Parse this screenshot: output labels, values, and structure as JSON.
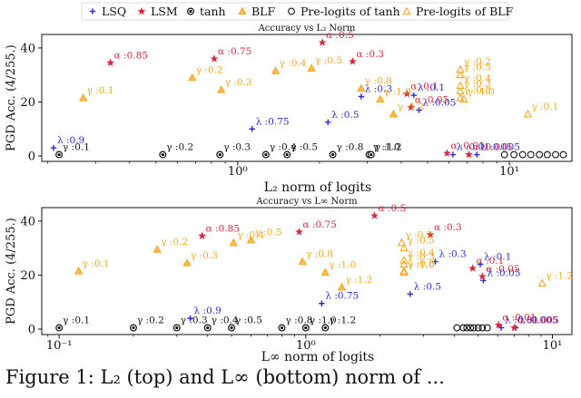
{
  "legend": {
    "entries": [
      {
        "label": "LSQ",
        "marker": "plus",
        "color": "#2b2bd8"
      },
      {
        "label": "LSM",
        "marker": "star",
        "color": "#d7263d"
      },
      {
        "label": "tanh",
        "marker": "circle-dot",
        "color": "#111111"
      },
      {
        "label": "BLF",
        "marker": "triangle",
        "color": "#f4a81d"
      },
      {
        "label": "Pre-logits of tanh",
        "marker": "circle-open",
        "color": "#111111"
      },
      {
        "label": "Pre-logits of BLF",
        "marker": "triangle-open",
        "color": "#f4a81d"
      }
    ]
  },
  "caption": "Figure 1: L₂ (top) and L∞ (bottom) norm of ...",
  "colors": {
    "LSQ": "#2b2bd8",
    "LSM": "#d7263d",
    "tanh": "#111111",
    "BLF": "#f4a81d",
    "pre_tanh": "#111111",
    "pre_BLF": "#f4a81d"
  },
  "chart_data": [
    {
      "type": "scatter",
      "title": "Accuracy vs L₂ Norm",
      "xlabel": "L₂ norm of logits",
      "ylabel": "PGD Acc. (4/255.)",
      "xscale": "log",
      "xlim": [
        0.19,
        17
      ],
      "ylim": [
        -2,
        45
      ],
      "yticks": [
        0,
        20,
        40
      ],
      "xticks": [
        {
          "v": 1,
          "label": "10⁰"
        },
        {
          "v": 10,
          "label": "10¹"
        }
      ],
      "series": [
        {
          "name": "LSQ",
          "points": [
            {
              "x": 0.21,
              "y": 3,
              "label": "λ :0.9"
            },
            {
              "x": 1.13,
              "y": 10,
              "label": "λ :0.75"
            },
            {
              "x": 2.15,
              "y": 12.5,
              "label": "λ :0.5"
            },
            {
              "x": 2.85,
              "y": 22,
              "label": "λ :0.3"
            },
            {
              "x": 4.45,
              "y": 22.5,
              "label": "λ :0.1"
            },
            {
              "x": 4.65,
              "y": 17,
              "label": "λ :0.05"
            },
            {
              "x": 6.2,
              "y": 0.5,
              "label": "λ :0.01"
            },
            {
              "x": 7.6,
              "y": 0.5,
              "label": "λ :0.005"
            }
          ]
        },
        {
          "name": "LSM",
          "points": [
            {
              "x": 0.34,
              "y": 34.5,
              "label": "α :0.85"
            },
            {
              "x": 0.82,
              "y": 36,
              "label": "α :0.75"
            },
            {
              "x": 2.05,
              "y": 42,
              "label": "α :0.5"
            },
            {
              "x": 2.65,
              "y": 35,
              "label": "α :0.3"
            },
            {
              "x": 4.2,
              "y": 23,
              "label": "α :0.1"
            },
            {
              "x": 4.35,
              "y": 18,
              "label": "α :0.05"
            },
            {
              "x": 5.9,
              "y": 1,
              "label": "α :0.01"
            },
            {
              "x": 7.1,
              "y": 0.5,
              "label": "α :0.005"
            }
          ]
        },
        {
          "name": "tanh",
          "points": [
            {
              "x": 0.22,
              "y": 0.5,
              "label": "γ :0.1"
            },
            {
              "x": 0.53,
              "y": 0.5,
              "label": "γ :0.2"
            },
            {
              "x": 0.86,
              "y": 0.5,
              "label": "γ :0.3"
            },
            {
              "x": 1.27,
              "y": 0.5,
              "label": "γ :0.4"
            },
            {
              "x": 1.52,
              "y": 0.5,
              "label": "γ :0.5"
            },
            {
              "x": 2.24,
              "y": 0.5,
              "label": "γ :0.8"
            },
            {
              "x": 3.05,
              "y": 0.5,
              "label": "γ :1.0"
            },
            {
              "x": 3.1,
              "y": 0.5,
              "label": "γ :1.2"
            }
          ]
        },
        {
          "name": "BLF",
          "points": [
            {
              "x": 0.27,
              "y": 21.5,
              "label": "γ :0.1"
            },
            {
              "x": 0.68,
              "y": 29,
              "label": "γ :0.2"
            },
            {
              "x": 0.87,
              "y": 24.5,
              "label": "γ :0.3"
            },
            {
              "x": 1.38,
              "y": 31.5,
              "label": "γ :0.4"
            },
            {
              "x": 1.87,
              "y": 32.5,
              "label": "γ :0.5"
            },
            {
              "x": 2.85,
              "y": 25,
              "label": "γ :0.8"
            },
            {
              "x": 3.35,
              "y": 21,
              "label": "γ :1.0"
            },
            {
              "x": 3.75,
              "y": 15.5,
              "label": "γ :1.2"
            }
          ]
        },
        {
          "name": "Pre-logits of tanh",
          "points": [
            {
              "x": 9.6,
              "y": 0.5
            },
            {
              "x": 10.4,
              "y": 0.5
            },
            {
              "x": 11.2,
              "y": 0.5
            },
            {
              "x": 12.0,
              "y": 0.5
            },
            {
              "x": 12.9,
              "y": 0.5
            },
            {
              "x": 13.8,
              "y": 0.5
            },
            {
              "x": 14.8,
              "y": 0.5
            },
            {
              "x": 15.8,
              "y": 0.5
            }
          ]
        },
        {
          "name": "Pre-logits of BLF",
          "points": [
            {
              "x": 6.6,
              "y": 32,
              "label": "γ :0.2"
            },
            {
              "x": 6.6,
              "y": 30,
              "label": "γ :0.5"
            },
            {
              "x": 6.6,
              "y": 26,
              "label": "γ :0.4"
            },
            {
              "x": 6.6,
              "y": 24,
              "label": "γ :0.3"
            },
            {
              "x": 6.6,
              "y": 21.5,
              "label": "γ :0.8"
            },
            {
              "x": 6.8,
              "y": 21,
              "label": "γ :1.0"
            },
            {
              "x": 11.7,
              "y": 15.5,
              "label": "γ :0.1"
            }
          ]
        }
      ]
    },
    {
      "type": "scatter",
      "title": "Accuracy vs L∞ Norm",
      "xlabel": "L∞ norm of logits",
      "ylabel": "PGD Acc. (4/255.)",
      "xscale": "log",
      "xlim": [
        0.085,
        12
      ],
      "ylim": [
        -2,
        45
      ],
      "yticks": [
        0,
        20,
        40
      ],
      "xticks": [
        {
          "v": 0.1,
          "label": "10⁻¹"
        },
        {
          "v": 1,
          "label": "10⁰"
        },
        {
          "v": 10,
          "label": "10¹"
        }
      ],
      "series": [
        {
          "name": "LSQ",
          "points": [
            {
              "x": 0.34,
              "y": 4,
              "label": "λ :0.9"
            },
            {
              "x": 1.16,
              "y": 9.5,
              "label": "λ :0.75"
            },
            {
              "x": 2.65,
              "y": 13,
              "label": "λ :0.5"
            },
            {
              "x": 3.35,
              "y": 25,
              "label": "λ :0.3"
            },
            {
              "x": 5.1,
              "y": 24,
              "label": "λ :0.1"
            },
            {
              "x": 5.25,
              "y": 18,
              "label": "λ :0.05"
            },
            {
              "x": 6.2,
              "y": 0.5,
              "label": "λ :0.01"
            },
            {
              "x": 7.1,
              "y": 0.5,
              "label": "λ :0.005"
            }
          ]
        },
        {
          "name": "LSM",
          "points": [
            {
              "x": 0.38,
              "y": 34.5,
              "label": "α :0.85"
            },
            {
              "x": 0.94,
              "y": 36,
              "label": "α :0.75"
            },
            {
              "x": 1.9,
              "y": 42,
              "label": "α :0.5"
            },
            {
              "x": 3.2,
              "y": 35,
              "label": "α :0.3"
            },
            {
              "x": 4.75,
              "y": 22.5,
              "label": "α :0.1"
            },
            {
              "x": 5.2,
              "y": 19.5,
              "label": "α :0.05"
            },
            {
              "x": 6.05,
              "y": 1.5,
              "label": "α :0.01"
            },
            {
              "x": 7.0,
              "y": 0.5,
              "label": "α :0.005"
            }
          ]
        },
        {
          "name": "tanh",
          "points": [
            {
              "x": 0.1,
              "y": 0.5,
              "label": "γ :0.1"
            },
            {
              "x": 0.2,
              "y": 0.5,
              "label": "γ :0.2"
            },
            {
              "x": 0.3,
              "y": 0.5,
              "label": "γ :0.3"
            },
            {
              "x": 0.4,
              "y": 0.5,
              "label": "γ :0.4"
            },
            {
              "x": 0.5,
              "y": 0.5,
              "label": "γ :0.5"
            },
            {
              "x": 0.8,
              "y": 0.5,
              "label": "γ :0.8"
            },
            {
              "x": 1.0,
              "y": 0.5,
              "label": "γ :1.0"
            },
            {
              "x": 1.2,
              "y": 0.5,
              "label": "γ :1.2"
            }
          ]
        },
        {
          "name": "BLF",
          "points": [
            {
              "x": 0.12,
              "y": 21.5,
              "label": "γ :0.1"
            },
            {
              "x": 0.25,
              "y": 29.5,
              "label": "γ :0.2"
            },
            {
              "x": 0.33,
              "y": 24.5,
              "label": "γ :0.3"
            },
            {
              "x": 0.51,
              "y": 32,
              "label": "γ :0.4"
            },
            {
              "x": 0.6,
              "y": 33,
              "label": "γ :0.5"
            },
            {
              "x": 0.97,
              "y": 25,
              "label": "γ :0.8"
            },
            {
              "x": 1.2,
              "y": 21,
              "label": "γ :1.0"
            },
            {
              "x": 1.4,
              "y": 15.5,
              "label": "γ :1.2"
            }
          ]
        },
        {
          "name": "Pre-logits of tanh",
          "points": [
            {
              "x": 4.1,
              "y": 0.5
            },
            {
              "x": 4.35,
              "y": 0.5
            },
            {
              "x": 4.5,
              "y": 0.5
            },
            {
              "x": 4.65,
              "y": 0.5
            },
            {
              "x": 4.8,
              "y": 0.5
            },
            {
              "x": 5.0,
              "y": 0.5
            },
            {
              "x": 5.2,
              "y": 0.5
            },
            {
              "x": 5.45,
              "y": 0.5
            }
          ]
        },
        {
          "name": "Pre-logits of BLF",
          "points": [
            {
              "x": 2.45,
              "y": 32,
              "label": "γ :0.2"
            },
            {
              "x": 2.5,
              "y": 30,
              "label": "γ :0.5"
            },
            {
              "x": 2.5,
              "y": 25.5,
              "label": "γ :0.4"
            },
            {
              "x": 2.5,
              "y": 24,
              "label": "γ :0.3"
            },
            {
              "x": 2.5,
              "y": 21.5,
              "label": "γ :0.8"
            },
            {
              "x": 2.5,
              "y": 21,
              "label": "γ :1.0"
            },
            {
              "x": 9.1,
              "y": 17,
              "label": "γ :1.2"
            }
          ]
        }
      ]
    }
  ]
}
